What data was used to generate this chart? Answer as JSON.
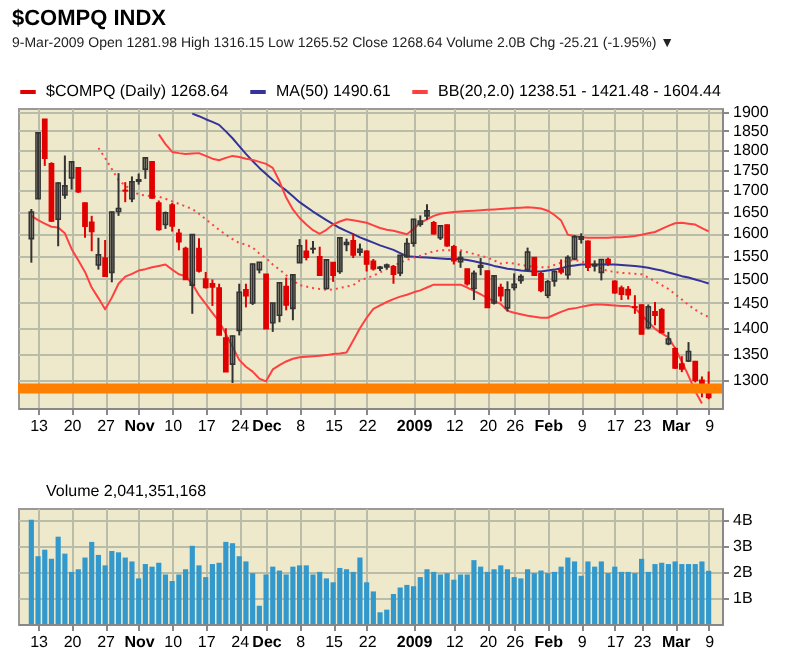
{
  "chart_data": [
    {
      "type": "candlestick",
      "title": "$COMPQ INDX",
      "subtitle": "9-Mar-2009   Open 1281.98  High 1316.15  Low 1265.52  Close 1268.64  Volume 2.0B  Chg -25.21 (-1.95%) ▼",
      "categories": [
        null,
        "13",
        null,
        null,
        null,
        null,
        "20",
        null,
        null,
        null,
        null,
        "27",
        null,
        null,
        null,
        null,
        "Nov",
        null,
        null,
        null,
        null,
        "10",
        null,
        null,
        null,
        null,
        "17",
        null,
        null,
        null,
        null,
        "24",
        null,
        null,
        null,
        "Dec",
        null,
        null,
        null,
        null,
        "8",
        null,
        null,
        null,
        null,
        "15",
        null,
        null,
        null,
        null,
        "22",
        null,
        null,
        null,
        null,
        null,
        null,
        "2009",
        null,
        null,
        null,
        null,
        null,
        "12",
        null,
        null,
        null,
        null,
        "20",
        null,
        null,
        null,
        "26",
        null,
        null,
        null,
        null,
        "Feb",
        null,
        null,
        null,
        null,
        "9",
        null,
        null,
        null,
        null,
        "17",
        null,
        null,
        null,
        "23",
        null,
        null,
        null,
        null,
        "Mar",
        null,
        null,
        null,
        null,
        "9"
      ],
      "log": true,
      "ylim": [
        1250,
        1910
      ],
      "yticks": [
        1300,
        1350,
        1400,
        1450,
        1500,
        1550,
        1600,
        1650,
        1700,
        1750,
        1800,
        1850,
        1900
      ],
      "grid": true,
      "legend": "top left",
      "ref_lines": [
        {
          "axis": "y",
          "value": 1285,
          "color": "#ff8000"
        }
      ],
      "series": [
        {
          "type": "candlestick",
          "name": "$COMPQ (Daily) 1268.64",
          "color": "#e00000",
          "colors": [
            "#333333",
            "#333333",
            "#e00000",
            "#e00000",
            "#333333",
            "#333333",
            "#333333",
            "#e00000",
            "#e00000",
            "#e00000",
            "#333333",
            "#e00000",
            "#333333",
            "#333333",
            "#e00000",
            "#333333",
            "#333333",
            "#333333",
            "#e00000",
            "#e00000",
            "#333333",
            "#e00000",
            "#e00000",
            "#e00000",
            "#333333",
            "#e00000",
            "#e00000",
            "#e00000",
            "#e00000",
            "#e00000",
            "#333333",
            "#333333",
            "#e00000",
            "#333333",
            "#333333",
            "#e00000",
            "#333333",
            "#333333",
            "#e00000",
            "#333333",
            "#333333",
            "#e00000",
            "#333333",
            "#e00000",
            "#333333",
            "#e00000",
            "#333333",
            "#333333",
            "#e00000",
            "#333333",
            "#e00000",
            "#e00000",
            "#333333",
            "#333333",
            "#e00000",
            "#333333",
            "#333333",
            "#333333",
            "#333333",
            "#333333",
            "#e00000",
            "#333333",
            "#e00000",
            "#e00000",
            "#333333",
            "#e00000",
            "#333333",
            "#333333",
            "#e00000",
            "#333333",
            "#e00000",
            "#333333",
            "#333333",
            "#333333",
            "#333333",
            "#e00000",
            "#e00000",
            "#333333",
            "#333333",
            "#e00000",
            "#333333",
            "#333333",
            "#333333",
            "#e00000",
            "#333333",
            "#333333",
            "#e00000",
            "#e00000",
            "#e00000",
            "#e00000",
            "#e00000",
            "#e00000",
            "#333333",
            "#e00000",
            "#e00000",
            "#333333",
            "#e00000",
            "#e00000",
            "#333333",
            "#e00000",
            "#e00000",
            "#e00000"
          ],
          "ohlc": [
            [
              1588,
              1656,
              1535,
              1649
            ],
            [
              1680,
              1844,
              1680,
              1844
            ],
            [
              1880,
              1880,
              1760,
              1779
            ],
            [
              1765,
              1769,
              1626,
              1628
            ],
            [
              1632,
              1720,
              1571,
              1718
            ],
            [
              1689,
              1786,
              1680,
              1711
            ],
            [
              1730,
              1772,
              1702,
              1770
            ],
            [
              1755,
              1756,
              1694,
              1697
            ],
            [
              1670,
              1671,
              1590,
              1616
            ],
            [
              1625,
              1640,
              1560,
              1604
            ],
            [
              1530,
              1590,
              1520,
              1552
            ],
            [
              1545,
              1585,
              1505,
              1506
            ],
            [
              1514,
              1650,
              1493,
              1649
            ],
            [
              1650,
              1742,
              1640,
              1657
            ],
            [
              1700,
              1720,
              1672,
              1699
            ],
            [
              1680,
              1734,
              1672,
              1721
            ],
            [
              1722,
              1741,
              1714,
              1726
            ],
            [
              1752,
              1780,
              1728,
              1780
            ],
            [
              1770,
              1771,
              1680,
              1682
            ],
            [
              1670,
              1676,
              1606,
              1609
            ],
            [
              1620,
              1650,
              1610,
              1647
            ],
            [
              1665,
              1670,
              1604,
              1617
            ],
            [
              1600,
              1610,
              1562,
              1581
            ],
            [
              1566,
              1570,
              1499,
              1499
            ],
            [
              1487,
              1597,
              1428,
              1597
            ],
            [
              1566,
              1589,
              1514,
              1517
            ],
            [
              1500,
              1515,
              1480,
              1482
            ],
            [
              1490,
              1499,
              1444,
              1483
            ],
            [
              1481,
              1490,
              1386,
              1386
            ],
            [
              1380,
              1399,
              1316,
              1316
            ],
            [
              1330,
              1385,
              1295,
              1384
            ],
            [
              1395,
              1490,
              1385,
              1472
            ],
            [
              1477,
              1490,
              1441,
              1465
            ],
            [
              1450,
              1533,
              1446,
              1532
            ],
            [
              1520,
              1536,
              1512,
              1536
            ],
            [
              1510,
              1510,
              1398,
              1398
            ],
            [
              1410,
              1450,
              1392,
              1450
            ],
            [
              1425,
              1492,
              1411,
              1492
            ],
            [
              1484,
              1503,
              1435,
              1446
            ],
            [
              1439,
              1510,
              1415,
              1509
            ],
            [
              1535,
              1587,
              1535,
              1572
            ],
            [
              1560,
              1586,
              1540,
              1547
            ],
            [
              1565,
              1583,
              1555,
              1566
            ],
            [
              1548,
              1570,
              1507,
              1508
            ],
            [
              1480,
              1543,
              1478,
              1541
            ],
            [
              1535,
              1536,
              1494,
              1508
            ],
            [
              1516,
              1590,
              1511,
              1590
            ],
            [
              1575,
              1588,
              1560,
              1579
            ],
            [
              1583,
              1599,
              1545,
              1552
            ],
            [
              1558,
              1577,
              1550,
              1564
            ],
            [
              1560,
              1562,
              1516,
              1532
            ],
            [
              1538,
              1543,
              1518,
              1522
            ],
            [
              1523,
              1528,
              1517,
              1525
            ],
            [
              1526,
              1533,
              1521,
              1530
            ],
            [
              1526,
              1530,
              1490,
              1510
            ],
            [
              1513,
              1551,
              1506,
              1551
            ],
            [
              1548,
              1589,
              1546,
              1577
            ],
            [
              1578,
              1633,
              1570,
              1632
            ],
            [
              1621,
              1641,
              1615,
              1628
            ],
            [
              1640,
              1667,
              1631,
              1652
            ],
            [
              1624,
              1628,
              1597,
              1599
            ],
            [
              1590,
              1618,
              1585,
              1617
            ],
            [
              1619,
              1620,
              1570,
              1572
            ],
            [
              1570,
              1574,
              1531,
              1539
            ],
            [
              1537,
              1560,
              1524,
              1546
            ],
            [
              1521,
              1522,
              1486,
              1490
            ],
            [
              1480,
              1518,
              1456,
              1512
            ],
            [
              1525,
              1545,
              1508,
              1529
            ],
            [
              1517,
              1518,
              1440,
              1441
            ],
            [
              1450,
              1507,
              1447,
              1507
            ],
            [
              1482,
              1490,
              1453,
              1465
            ],
            [
              1440,
              1495,
              1433,
              1477
            ],
            [
              1482,
              1512,
              1476,
              1489
            ],
            [
              1497,
              1510,
              1490,
              1505
            ],
            [
              1520,
              1568,
              1520,
              1558
            ],
            [
              1546,
              1547,
              1507,
              1508
            ],
            [
              1511,
              1515,
              1472,
              1476
            ],
            [
              1466,
              1498,
              1460,
              1494
            ],
            [
              1496,
              1518,
              1484,
              1516
            ],
            [
              1520,
              1542,
              1510,
              1515
            ],
            [
              1509,
              1551,
              1499,
              1546
            ],
            [
              1543,
              1596,
              1540,
              1592
            ],
            [
              1587,
              1600,
              1577,
              1592
            ],
            [
              1582,
              1584,
              1517,
              1525
            ],
            [
              1528,
              1540,
              1516,
              1531
            ],
            [
              1514,
              1542,
              1497,
              1542
            ],
            [
              1542,
              1546,
              1528,
              1534
            ],
            [
              1495,
              1497,
              1469,
              1471
            ],
            [
              1481,
              1486,
              1456,
              1468
            ],
            [
              1478,
              1485,
              1457,
              1467
            ],
            [
              1442,
              1466,
              1428,
              1441
            ],
            [
              1446,
              1447,
              1387,
              1388
            ],
            [
              1400,
              1447,
              1397,
              1442
            ],
            [
              1432,
              1452,
              1405,
              1425
            ],
            [
              1436,
              1440,
              1390,
              1391
            ],
            [
              1369,
              1392,
              1366,
              1378
            ],
            [
              1359,
              1362,
              1321,
              1323
            ],
            [
              1330,
              1345,
              1315,
              1321
            ],
            [
              1336,
              1372,
              1334,
              1354
            ],
            [
              1335,
              1336,
              1296,
              1300
            ],
            [
              1300,
              1307,
              1269,
              1294
            ],
            [
              1281.98,
              1316.15,
              1265.52,
              1268.64
            ]
          ]
        },
        {
          "type": "line",
          "name": "MA(50) 1490.61",
          "color": "#333399",
          "values": [
            null,
            null,
            null,
            null,
            null,
            null,
            null,
            null,
            null,
            null,
            null,
            null,
            null,
            null,
            null,
            null,
            null,
            null,
            null,
            null,
            null,
            null,
            null,
            null,
            1895,
            1888,
            1880,
            1873,
            1865,
            1848,
            1830,
            1810,
            1790,
            1772,
            1755,
            1740,
            1725,
            1712,
            1700,
            1686,
            1672,
            1661,
            1650,
            1640,
            1630,
            1621,
            1612,
            1605,
            1598,
            1591,
            1585,
            1579,
            1573,
            1568,
            1563,
            1556,
            1549,
            1548,
            1547,
            1546,
            1545,
            1544,
            1543,
            1543,
            1543,
            1541,
            1538,
            1535,
            1532,
            1528,
            1525,
            1522,
            1520,
            1518,
            1517,
            1516,
            1516,
            1518,
            1520,
            1523,
            1527,
            1529,
            1531,
            1531,
            1531,
            1531,
            1531,
            1531,
            1530,
            1529,
            1528,
            1526,
            1524,
            1521,
            1518,
            1514,
            1510,
            1506,
            1503,
            1499,
            1495,
            1490.61
          ]
        },
        {
          "type": "line",
          "name": "BB(20,2.0) 1238.51 - 1421.48 - 1604.44",
          "color": "#ff4040",
          "values": [
            null,
            null,
            null,
            null,
            null,
            null,
            null,
            null,
            null,
            null,
            null,
            null,
            null,
            null,
            null,
            null,
            null,
            null,
            null,
            1840,
            1815,
            1795,
            1792,
            1790,
            1791,
            1792,
            1785,
            1778,
            1774,
            1780,
            1785,
            1782,
            1778,
            1775,
            1770,
            1765,
            1755,
            1722,
            1683,
            1655,
            1635,
            1620,
            1607,
            1599,
            1608,
            1620,
            1627,
            1632,
            1630,
            1627,
            1624,
            1618,
            1612,
            1608,
            1606,
            1602,
            1598,
            1610,
            1624,
            1632,
            1640,
            1645,
            1647,
            1649,
            1650,
            1651,
            1652,
            1653,
            1654,
            1655,
            1656,
            1657,
            1658,
            1659,
            1660,
            1659,
            1657,
            1652,
            1642,
            1629,
            1597,
            1594,
            1591,
            1590,
            1590,
            1590,
            1590,
            1591,
            1591,
            1592,
            1594,
            1597,
            1600,
            1603,
            1610,
            1617,
            1623,
            1624,
            1622,
            1620,
            1612,
            1604.44
          ]
        },
        {
          "type": "line",
          "color": "#ff4040",
          "line_style": "dotted",
          "values": [
            null,
            null,
            null,
            null,
            null,
            null,
            null,
            null,
            null,
            null,
            1805,
            1780,
            1752,
            1725,
            1712,
            1700,
            1690,
            1688,
            1686,
            1685,
            1680,
            1674,
            1668,
            1662,
            1656,
            1645,
            1632,
            1620,
            1608,
            1597,
            1587,
            1578,
            1575,
            1568,
            1555,
            1545,
            1531,
            1520,
            1508,
            1497,
            1487,
            1484,
            1481,
            1479,
            1477,
            1478,
            1481,
            1484,
            1487,
            1497,
            1502,
            1507,
            1514,
            1521,
            1528,
            1535,
            1541,
            1546,
            1550,
            1555,
            1560,
            1562,
            1562,
            1562,
            1562,
            1558,
            1554,
            1550,
            1546,
            1540,
            1533,
            1535,
            1533,
            1530,
            1528,
            1526,
            1525,
            1525,
            1530,
            1535,
            1539,
            1541,
            1538,
            1533,
            1528,
            1522,
            1517,
            1515,
            1513,
            1512,
            1511,
            1510,
            1503,
            1495,
            1487,
            1479,
            1468,
            1457,
            1446,
            1436,
            1428,
            1421.48
          ]
        },
        {
          "type": "line",
          "color": "#ff4040",
          "values": [
            1640,
            1630,
            1622,
            1615,
            1613,
            1600,
            1565,
            1540,
            1515,
            1482,
            1460,
            1437,
            1461,
            1490,
            1505,
            1511,
            1518,
            1521,
            1525,
            1528,
            1531,
            1520,
            1510,
            1506,
            1490,
            1466,
            1448,
            1430,
            1413,
            1388,
            1363,
            1338,
            1325,
            1316,
            1303,
            1298,
            1320,
            1328,
            1335,
            1340,
            1343,
            1344,
            1345,
            1346,
            1347,
            1349,
            1350,
            1352,
            1375,
            1399,
            1420,
            1438,
            1445,
            1452,
            1458,
            1463,
            1467,
            1472,
            1476,
            1482,
            1488,
            1488,
            1488,
            1488,
            1488,
            1482,
            1475,
            1468,
            1460,
            1454,
            1448,
            1434,
            1430,
            1427,
            1424,
            1422,
            1420,
            1420,
            1426,
            1432,
            1437,
            1439,
            1442,
            1445,
            1447,
            1447,
            1446,
            1445,
            1444,
            1444,
            1440,
            1425,
            1412,
            1398,
            1389,
            1381,
            1360,
            1335,
            1308,
            1280,
            1258,
            null
          ]
        }
      ]
    },
    {
      "type": "bar",
      "categories": [
        null,
        "13",
        null,
        null,
        null,
        null,
        "20",
        null,
        null,
        null,
        null,
        "27",
        null,
        null,
        null,
        null,
        "Nov",
        null,
        null,
        null,
        null,
        "10",
        null,
        null,
        null,
        null,
        "17",
        null,
        null,
        null,
        null,
        "24",
        null,
        null,
        null,
        "Dec",
        null,
        null,
        null,
        null,
        "8",
        null,
        null,
        null,
        null,
        "15",
        null,
        null,
        null,
        null,
        "22",
        null,
        null,
        null,
        null,
        null,
        null,
        "2009",
        null,
        null,
        null,
        null,
        null,
        "12",
        null,
        null,
        null,
        null,
        "20",
        null,
        null,
        null,
        "26",
        null,
        null,
        null,
        null,
        "Feb",
        null,
        null,
        null,
        null,
        "9",
        null,
        null,
        null,
        null,
        "17",
        null,
        null,
        null,
        "23",
        null,
        null,
        null,
        null,
        "Mar",
        null,
        null,
        null,
        null,
        "9"
      ],
      "ylim": [
        0,
        4.45
      ],
      "yticks": [
        {
          "value": 1,
          "label": "1B"
        },
        {
          "value": 2,
          "label": "2B"
        },
        {
          "value": 3,
          "label": "3B"
        },
        {
          "value": 4,
          "label": "4B"
        }
      ],
      "grid": true,
      "legend": "top left",
      "series": [
        {
          "name": "Volume 2,041,351,168",
          "color": "#3399cc",
          "values": [
            4.0,
            2.6,
            2.85,
            2.5,
            3.35,
            2.7,
            2.0,
            2.1,
            2.55,
            3.15,
            2.65,
            2.25,
            2.8,
            2.75,
            2.55,
            2.4,
            1.75,
            2.3,
            2.2,
            2.35,
            1.9,
            1.65,
            1.9,
            2.1,
            3.0,
            2.25,
            1.8,
            2.3,
            2.35,
            3.15,
            3.1,
            2.6,
            2.4,
            1.95,
            0.7,
            1.9,
            2.2,
            2.05,
            1.9,
            2.2,
            2.25,
            2.25,
            1.9,
            2.0,
            1.75,
            1.6,
            2.15,
            2.1,
            2.0,
            2.55,
            1.6,
            1.25,
            0.45,
            0.55,
            1.15,
            1.4,
            1.5,
            1.45,
            1.8,
            2.1,
            2.0,
            1.9,
            1.95,
            1.7,
            1.9,
            1.9,
            2.45,
            2.2,
            2.0,
            2.1,
            2.25,
            2.1,
            1.8,
            1.75,
            2.1,
            1.95,
            2.05,
            1.95,
            2.0,
            2.2,
            2.55,
            2.4,
            1.85,
            2.4,
            2.2,
            2.4,
            1.95,
            2.2,
            2.0,
            2.0,
            1.95,
            2.5,
            2.0,
            2.3,
            2.35,
            2.3,
            2.4,
            2.3,
            2.3,
            2.3,
            2.4,
            2.04
          ]
        }
      ]
    }
  ]
}
